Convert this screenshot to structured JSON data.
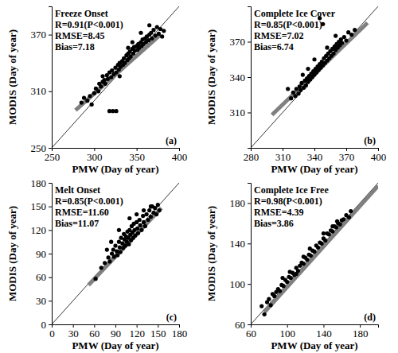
{
  "chart_data": [
    {
      "type": "scatter",
      "title": "Freeze Onset",
      "annotations": [
        "R=0.91(P<0.001)",
        "RMSE=8.45",
        "Bias=7.18"
      ],
      "panel_label": "(a)",
      "x_label": "PMW (Day of year)",
      "y_label": "MODIS (Day of year)",
      "color": "#000000",
      "marker": "circle",
      "x": [
        285,
        288,
        292,
        295,
        297,
        300,
        302,
        305,
        306,
        308,
        310,
        312,
        313,
        315,
        316,
        318,
        318,
        320,
        321,
        322,
        323,
        325,
        326,
        326,
        328,
        329,
        330,
        331,
        333,
        334,
        335,
        336,
        338,
        339,
        340,
        341,
        342,
        343,
        345,
        346,
        347,
        348,
        350,
        351,
        352,
        353,
        355,
        356,
        357,
        358,
        360,
        361,
        362,
        364,
        365,
        367,
        368,
        370,
        372,
        374,
        376,
        378,
        380,
        382,
        365,
        345,
        330,
        310,
        355,
        340
      ],
      "values": [
        298,
        303,
        300,
        305,
        296,
        308,
        313,
        310,
        318,
        315,
        320,
        322,
        318,
        327,
        323,
        289,
        330,
        325,
        332,
        289,
        328,
        335,
        289,
        330,
        338,
        333,
        340,
        336,
        342,
        338,
        345,
        340,
        348,
        343,
        350,
        345,
        352,
        347,
        355,
        350,
        357,
        353,
        358,
        354,
        360,
        356,
        362,
        358,
        365,
        360,
        366,
        362,
        368,
        364,
        370,
        372,
        366,
        375,
        369,
        378,
        371,
        376,
        368,
        374,
        380,
        362,
        326,
        326,
        372,
        356
      ],
      "fit": {
        "x": [
          278,
          378
        ],
        "values": [
          290,
          370
        ],
        "color": "#808080"
      },
      "xlim": [
        250,
        400
      ],
      "ylim": [
        250,
        400
      ],
      "xticks": [
        250,
        300,
        350,
        400
      ],
      "yticks": [
        250,
        310,
        370
      ]
    },
    {
      "type": "scatter",
      "title": "Complete Ice Cover",
      "annotations": [
        "R=0.85(P<0.001)",
        "RMSE=7.02",
        "Bias=6.74"
      ],
      "panel_label": "(b)",
      "x_label": "PMW (Day of year)",
      "y_label": "MODIS (Day of year)",
      "color": "#000000",
      "marker": "circle",
      "x": [
        318,
        320,
        322,
        323,
        325,
        326,
        327,
        328,
        330,
        331,
        332,
        333,
        334,
        335,
        336,
        337,
        338,
        339,
        340,
        341,
        342,
        343,
        344,
        345,
        345,
        346,
        347,
        348,
        348,
        349,
        350,
        351,
        352,
        353,
        354,
        355,
        356,
        357,
        358,
        359,
        360,
        361,
        362,
        363,
        364,
        365,
        366,
        368,
        370,
        372,
        375,
        378,
        334,
        340,
        329,
        352,
        315,
        360
      ],
      "values": [
        322,
        327,
        324,
        330,
        326,
        332,
        329,
        335,
        331,
        337,
        333,
        339,
        336,
        341,
        338,
        343,
        340,
        345,
        342,
        347,
        344,
        349,
        346,
        351,
        390,
        348,
        353,
        385,
        350,
        356,
        352,
        358,
        354,
        360,
        356,
        362,
        358,
        364,
        360,
        366,
        363,
        368,
        365,
        370,
        367,
        372,
        369,
        374,
        371,
        378,
        376,
        380,
        347,
        355,
        342,
        365,
        330,
        375
      ],
      "fit": {
        "x": [
          300,
          390
        ],
        "values": [
          308,
          386
        ],
        "color": "#808080"
      },
      "xlim": [
        280,
        400
      ],
      "ylim": [
        280,
        400
      ],
      "xticks": [
        280,
        310,
        340,
        370,
        400
      ],
      "yticks": [
        310,
        340,
        370
      ]
    },
    {
      "type": "scatter",
      "title": "Melt Onset",
      "annotations": [
        "R=0.85(P<0.001)",
        "RMSE=11.60",
        "Bias=11.07"
      ],
      "panel_label": "(c)",
      "x_label": "PMW (Day of year)",
      "y_label": "MODIS (Day of year)",
      "color": "#000000",
      "marker": "circle",
      "x": [
        62,
        70,
        75,
        80,
        82,
        85,
        87,
        88,
        90,
        92,
        93,
        95,
        96,
        97,
        98,
        100,
        101,
        102,
        103,
        104,
        105,
        106,
        107,
        108,
        109,
        110,
        111,
        112,
        113,
        114,
        115,
        116,
        117,
        118,
        120,
        121,
        122,
        124,
        125,
        127,
        129,
        130,
        132,
        134,
        136,
        138,
        140,
        142,
        144,
        146,
        148,
        150,
        152,
        78,
        84,
        95,
        110,
        130,
        140,
        120
      ],
      "values": [
        58,
        72,
        78,
        85,
        80,
        90,
        95,
        86,
        100,
        93,
        88,
        105,
        98,
        92,
        110,
        103,
        97,
        115,
        108,
        100,
        112,
        105,
        118,
        110,
        102,
        120,
        114,
        107,
        125,
        117,
        110,
        128,
        120,
        113,
        130,
        122,
        116,
        133,
        126,
        120,
        138,
        130,
        125,
        140,
        133,
        145,
        137,
        150,
        142,
        148,
        140,
        152,
        145,
        95,
        105,
        120,
        135,
        145,
        150,
        140
      ],
      "fit": {
        "x": [
          52,
          155
        ],
        "values": [
          50,
          148
        ],
        "color": "#808080"
      },
      "xlim": [
        0,
        180
      ],
      "ylim": [
        0,
        180
      ],
      "xticks": [
        0,
        30,
        60,
        90,
        120,
        150,
        180
      ],
      "yticks": [
        0,
        30,
        60,
        90,
        120,
        150,
        180
      ]
    },
    {
      "type": "scatter",
      "title": "Complete Ice Free",
      "annotations": [
        "R=0.98(P<0.001)",
        "RMSE=4.39",
        "Bias=3.86"
      ],
      "panel_label": "(d)",
      "x_label": "PMW (Day of year)",
      "y_label": "MODIS (Day of year)",
      "color": "#000000",
      "marker": "circle",
      "x": [
        72,
        75,
        78,
        80,
        82,
        84,
        86,
        88,
        90,
        92,
        94,
        96,
        98,
        100,
        102,
        104,
        106,
        108,
        110,
        112,
        114,
        116,
        118,
        120,
        122,
        124,
        126,
        128,
        130,
        132,
        134,
        136,
        138,
        140,
        142,
        144,
        146,
        148,
        150,
        152,
        154,
        156,
        158,
        160,
        162,
        165,
        168,
        170,
        110,
        95,
        125,
        140,
        150,
        155,
        118,
        103
      ],
      "values": [
        78,
        70,
        82,
        85,
        79,
        90,
        88,
        92,
        95,
        93,
        99,
        98,
        104,
        102,
        107,
        106,
        111,
        109,
        116,
        113,
        118,
        121,
        120,
        126,
        124,
        129,
        128,
        133,
        132,
        138,
        136,
        141,
        140,
        145,
        143,
        150,
        149,
        153,
        152,
        157,
        156,
        160,
        159,
        163,
        164,
        168,
        166,
        172,
        110,
        106,
        135,
        150,
        157,
        162,
        127,
        112
      ],
      "fit": {
        "x": [
          75,
          200
        ],
        "values": [
          72,
          197
        ],
        "color": "#808080"
      },
      "xlim": [
        60,
        200
      ],
      "ylim": [
        60,
        200
      ],
      "xticks": [
        60,
        100,
        140,
        180
      ],
      "yticks": [
        60,
        100,
        140,
        180
      ]
    }
  ]
}
